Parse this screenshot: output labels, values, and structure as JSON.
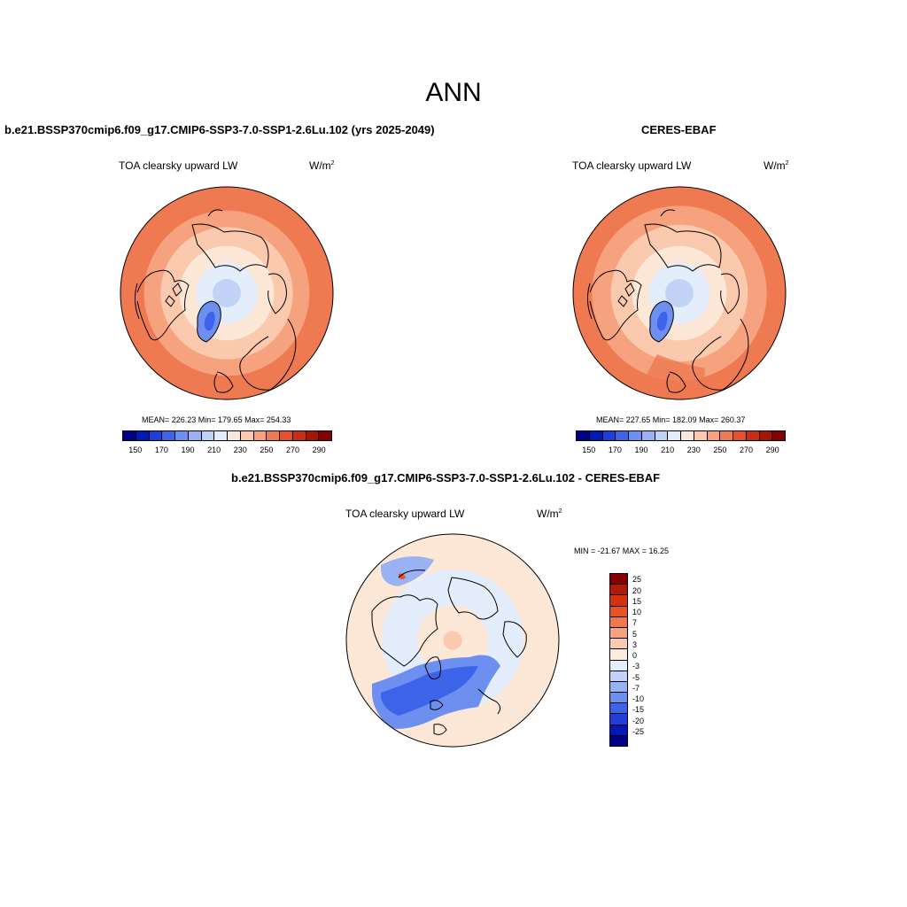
{
  "main_title": "ANN",
  "panels": {
    "model": {
      "title": "b.e21.BSSP370cmip6.f09_g17.CMIP6-SSP3-7.0-SSP1-2.6Lu.102 (yrs 2025-2049)",
      "left_string": "TOA clearsky upward LW",
      "unit": "W/m",
      "unit_exp": "2",
      "stats": "MEAN= 226.23  Min= 179.65  Max= 254.33"
    },
    "obs": {
      "title": "CERES-EBAF",
      "left_string": "TOA clearsky upward LW",
      "unit": "W/m",
      "unit_exp": "2",
      "stats": "MEAN= 227.65  Min= 182.09  Max= 260.37"
    },
    "diff": {
      "title": "b.e21.BSSP370cmip6.f09_g17.CMIP6-SSP3-7.0-SSP1-2.6Lu.102 - CERES-EBAF",
      "left_string": "TOA clearsky upward LW",
      "unit": "W/m",
      "unit_exp": "2",
      "stats": "MIN = -21.67 MAX =  16.25"
    }
  },
  "colorbar_abs": {
    "colors": [
      "#00008b",
      "#0018b4",
      "#1f3fd8",
      "#3d63e8",
      "#6d8ff0",
      "#98b2f4",
      "#c3d3f7",
      "#e4edfb",
      "#fde8d8",
      "#fbc9ad",
      "#f6a27e",
      "#ef7a52",
      "#e5512e",
      "#c92d14",
      "#a8140a",
      "#870000"
    ],
    "labels": [
      "150",
      "170",
      "190",
      "210",
      "230",
      "250",
      "270",
      "290"
    ]
  },
  "colorbar_diff": {
    "colors": [
      "#870000",
      "#b01a0a",
      "#d3310f",
      "#e9531d",
      "#f2784c",
      "#f6a27e",
      "#fbc9ad",
      "#fdebdc",
      "#e4edfb",
      "#c3d3f7",
      "#98b2f4",
      "#6d8ff0",
      "#3d63e8",
      "#1f3fd8",
      "#0018b4",
      "#00008b"
    ],
    "labels": [
      "25",
      "20",
      "15",
      "10",
      "7",
      "5",
      "3",
      "0",
      "-3",
      "-5",
      "-7",
      "-10",
      "-15",
      "-20",
      "-25"
    ]
  },
  "map_fields": {
    "model": [
      {
        "lat": 45,
        "color": "#ef7a52"
      },
      {
        "lat": 55,
        "color": "#f6a27e"
      },
      {
        "lat": 62,
        "color": "#fbc9ad"
      },
      {
        "lat": 70,
        "color": "#fde8d8"
      },
      {
        "lat": 77,
        "color": "#e4edfb"
      },
      {
        "lat": 84,
        "color": "#c3d3f7"
      }
    ],
    "obs": [
      {
        "lat": 45,
        "color": "#ef7a52"
      },
      {
        "lat": 53,
        "color": "#f6a27e"
      },
      {
        "lat": 61,
        "color": "#fbc9ad"
      },
      {
        "lat": 70,
        "color": "#fde8d8"
      },
      {
        "lat": 77,
        "color": "#e4edfb"
      },
      {
        "lat": 84,
        "color": "#c3d3f7"
      }
    ],
    "diff": [
      {
        "lat": 45,
        "color": "#fde8d8"
      },
      {
        "lat": 60,
        "color": "#e4edfb"
      },
      {
        "lat": 75,
        "color": "#fde8d8"
      },
      {
        "lat": 86,
        "color": "#fbc9ad"
      }
    ]
  }
}
